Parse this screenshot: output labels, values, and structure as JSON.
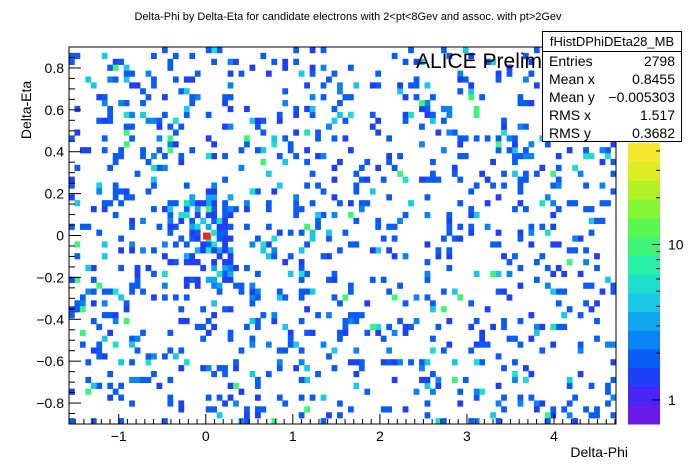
{
  "chart_data": {
    "type": "heatmap",
    "title": "Delta-Phi by Delta-Eta for candidate electrons with 2<pt<8Gev and assoc. with pt>2Gev",
    "xlabel": "Delta-Phi",
    "ylabel": "Delta-Eta",
    "xlim": [
      -1.571,
      4.712
    ],
    "ylim": [
      -0.9,
      0.9
    ],
    "x_ticks": [
      "-1",
      "0",
      "1",
      "2",
      "3",
      "4"
    ],
    "y_ticks": [
      "-0.8",
      "-0.6",
      "-0.4",
      "-0.2",
      "0",
      "0.2",
      "0.4",
      "0.6",
      "0.8"
    ],
    "colorbar_ticks": [
      "1",
      "10"
    ],
    "colorbar_max": 45,
    "annotation": "ALICE Preliminary",
    "peak": {
      "x": 0.0,
      "y": 0.0,
      "value": 40
    },
    "palette": [
      "#6a1bea",
      "#4a23f5",
      "#1f3ef8",
      "#0a5cf7",
      "#0a84f4",
      "#10a7ef",
      "#18c8e4",
      "#1fdfcc",
      "#28efa6",
      "#3ef57a",
      "#5af84e",
      "#86f634",
      "#b4f026",
      "#dcee22",
      "#f5e62e"
    ],
    "stats": {
      "name": "fHistDPhiDEta28_MB",
      "rows": [
        {
          "label": "Entries",
          "value": "2798"
        },
        {
          "label": "Mean x",
          "value": "0.8455"
        },
        {
          "label": "Mean y",
          "value": "−0.005303"
        },
        {
          "label": "RMS x",
          "value": "1.517"
        },
        {
          "label": "RMS y",
          "value": "0.3682"
        }
      ]
    }
  }
}
